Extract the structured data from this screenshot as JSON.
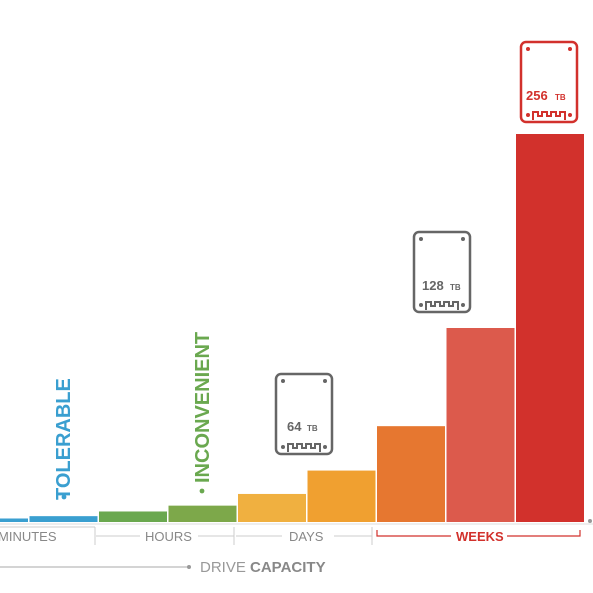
{
  "chart_data": {
    "type": "bar",
    "bars": [
      {
        "value": 1.5,
        "color": "#3a9fd0"
      },
      {
        "value": 2.5,
        "color": "#3a9fd0"
      },
      {
        "value": 4.5,
        "color": "#6aa84f"
      },
      {
        "value": 7,
        "color": "#7da84a"
      },
      {
        "value": 12,
        "color": "#f0b040"
      },
      {
        "value": 22,
        "color": "#f0a030"
      },
      {
        "value": 41,
        "color": "#e67730"
      },
      {
        "value": 83,
        "color": "#dc5a4c"
      },
      {
        "value": 166,
        "color": "#d2312c"
      }
    ],
    "annotations": [
      {
        "text": "TOLERABLE",
        "color": "#3a9fd0"
      },
      {
        "text": "INCONVENIENT",
        "color": "#6aa84f"
      }
    ],
    "drives": [
      {
        "value": "64",
        "unit": "TB",
        "color": "#666666"
      },
      {
        "value": "128",
        "unit": "TB",
        "color": "#666666"
      },
      {
        "value": "256",
        "unit": "TB",
        "color": "#d2312c"
      }
    ],
    "time_groups": [
      {
        "label": "MINUTES",
        "color": "#888888"
      },
      {
        "label": "HOURS",
        "color": "#888888"
      },
      {
        "label": "DAYS",
        "color": "#888888"
      },
      {
        "label": "WEEKS",
        "color": "#d2312c"
      }
    ],
    "axis_label": {
      "light": "DRIVE ",
      "bold": "CAPACITY"
    }
  }
}
